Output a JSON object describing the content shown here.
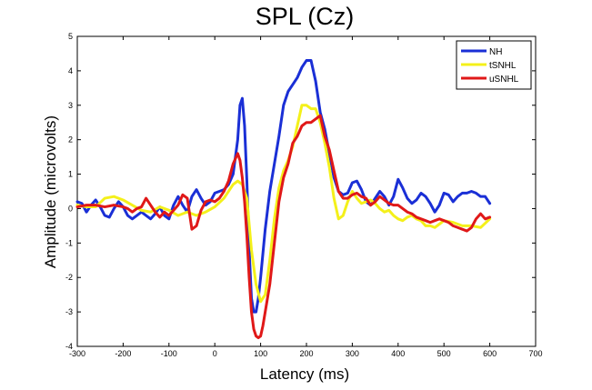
{
  "chart_data": {
    "type": "line",
    "title": "SPL (Cz)",
    "xlabel": "Latency (ms)",
    "ylabel": "Amplitude (microvolts)",
    "xlim": [
      -300,
      700
    ],
    "ylim": [
      -4,
      5
    ],
    "xticks": [
      -300,
      -200,
      -100,
      0,
      100,
      200,
      300,
      400,
      500,
      600,
      700
    ],
    "yticks": [
      -4,
      -3,
      -2,
      -1,
      0,
      1,
      2,
      3,
      4,
      5
    ],
    "grid": false,
    "legend_position": "top-right",
    "series": [
      {
        "name": "NH",
        "color": "#1a2fd6",
        "x": [
          -300,
          -290,
          -280,
          -270,
          -260,
          -250,
          -240,
          -230,
          -220,
          -210,
          -200,
          -190,
          -180,
          -170,
          -160,
          -150,
          -140,
          -130,
          -120,
          -110,
          -100,
          -90,
          -80,
          -70,
          -60,
          -50,
          -40,
          -30,
          -20,
          -10,
          0,
          10,
          20,
          30,
          40,
          50,
          55,
          60,
          65,
          70,
          75,
          80,
          85,
          90,
          95,
          100,
          110,
          120,
          130,
          140,
          150,
          160,
          170,
          180,
          190,
          200,
          210,
          220,
          230,
          240,
          250,
          260,
          270,
          280,
          290,
          300,
          310,
          320,
          330,
          340,
          350,
          360,
          370,
          380,
          390,
          400,
          410,
          420,
          430,
          440,
          450,
          460,
          470,
          480,
          490,
          500,
          510,
          520,
          530,
          540,
          550,
          560,
          570,
          580,
          590,
          600
        ],
        "y": [
          0.2,
          0.15,
          -0.1,
          0.1,
          0.25,
          0.05,
          -0.2,
          -0.25,
          0.0,
          0.2,
          0.05,
          -0.2,
          -0.3,
          -0.2,
          -0.1,
          -0.2,
          -0.3,
          -0.15,
          0.05,
          -0.2,
          -0.3,
          0.1,
          0.35,
          0.1,
          -0.1,
          0.35,
          0.55,
          0.3,
          0.1,
          0.2,
          0.45,
          0.5,
          0.55,
          0.7,
          1.0,
          2.0,
          3.0,
          3.2,
          2.4,
          0.8,
          -1.2,
          -2.6,
          -3.0,
          -3.0,
          -2.6,
          -2.0,
          -0.6,
          0.5,
          1.3,
          2.1,
          3.0,
          3.4,
          3.6,
          3.8,
          4.1,
          4.3,
          4.3,
          3.7,
          2.8,
          2.3,
          1.6,
          0.9,
          0.5,
          0.4,
          0.45,
          0.75,
          0.8,
          0.55,
          0.2,
          0.1,
          0.3,
          0.5,
          0.35,
          0.1,
          0.35,
          0.85,
          0.6,
          0.3,
          0.15,
          0.25,
          0.45,
          0.35,
          0.15,
          -0.1,
          0.1,
          0.45,
          0.4,
          0.2,
          0.35,
          0.45,
          0.45,
          0.5,
          0.45,
          0.35,
          0.35,
          0.15
        ]
      },
      {
        "name": "tSNHL",
        "color": "#f4f01a",
        "x": [
          -300,
          -280,
          -260,
          -240,
          -220,
          -200,
          -180,
          -160,
          -140,
          -120,
          -100,
          -80,
          -60,
          -40,
          -20,
          0,
          20,
          40,
          50,
          60,
          70,
          80,
          90,
          100,
          110,
          120,
          130,
          140,
          150,
          160,
          170,
          180,
          190,
          200,
          210,
          220,
          230,
          240,
          250,
          260,
          270,
          280,
          290,
          300,
          310,
          320,
          330,
          340,
          350,
          360,
          370,
          380,
          390,
          400,
          410,
          420,
          430,
          440,
          450,
          460,
          470,
          480,
          490,
          500,
          520,
          540,
          560,
          580,
          600
        ],
        "y": [
          0.1,
          0.05,
          0.05,
          0.3,
          0.35,
          0.25,
          0.1,
          -0.05,
          -0.1,
          0.05,
          -0.05,
          -0.2,
          -0.1,
          -0.2,
          -0.1,
          0.05,
          0.3,
          0.7,
          0.8,
          0.7,
          0.3,
          -1.2,
          -2.2,
          -2.7,
          -2.5,
          -1.5,
          -0.3,
          0.6,
          1.1,
          1.4,
          1.8,
          2.4,
          3.0,
          3.0,
          2.9,
          2.9,
          2.5,
          1.9,
          1.2,
          0.3,
          -0.3,
          -0.2,
          0.2,
          0.5,
          0.3,
          0.15,
          0.2,
          0.25,
          0.15,
          0.0,
          -0.1,
          -0.05,
          -0.2,
          -0.3,
          -0.35,
          -0.25,
          -0.2,
          -0.3,
          -0.35,
          -0.5,
          -0.5,
          -0.55,
          -0.45,
          -0.35,
          -0.4,
          -0.5,
          -0.5,
          -0.55,
          -0.3
        ]
      },
      {
        "name": "uSNHL",
        "color": "#e01818",
        "x": [
          -300,
          -280,
          -260,
          -240,
          -220,
          -200,
          -190,
          -180,
          -170,
          -160,
          -150,
          -140,
          -130,
          -120,
          -110,
          -100,
          -90,
          -80,
          -70,
          -60,
          -50,
          -40,
          -30,
          -20,
          -10,
          0,
          10,
          20,
          30,
          40,
          50,
          55,
          60,
          65,
          70,
          75,
          80,
          85,
          90,
          95,
          100,
          105,
          110,
          120,
          130,
          140,
          150,
          160,
          170,
          180,
          190,
          200,
          210,
          220,
          230,
          240,
          250,
          260,
          270,
          280,
          290,
          300,
          310,
          320,
          330,
          340,
          350,
          360,
          370,
          380,
          390,
          400,
          410,
          420,
          430,
          440,
          450,
          460,
          470,
          480,
          490,
          500,
          510,
          520,
          530,
          540,
          550,
          560,
          570,
          580,
          590,
          600
        ],
        "y": [
          0.05,
          0.1,
          0.1,
          0.05,
          0.1,
          0.05,
          0.0,
          -0.1,
          0.0,
          0.05,
          0.3,
          0.1,
          -0.1,
          -0.25,
          -0.1,
          -0.2,
          -0.05,
          0.1,
          0.4,
          0.3,
          -0.6,
          -0.5,
          -0.05,
          0.2,
          0.25,
          0.2,
          0.3,
          0.5,
          0.8,
          1.3,
          1.6,
          1.4,
          0.9,
          0.2,
          -0.8,
          -2.0,
          -3.0,
          -3.5,
          -3.7,
          -3.75,
          -3.7,
          -3.4,
          -3.0,
          -2.2,
          -1.0,
          0.2,
          0.9,
          1.3,
          1.9,
          2.1,
          2.4,
          2.5,
          2.5,
          2.6,
          2.7,
          2.1,
          1.7,
          1.1,
          0.5,
          0.3,
          0.3,
          0.4,
          0.45,
          0.35,
          0.3,
          0.1,
          0.2,
          0.35,
          0.25,
          0.15,
          0.1,
          0.1,
          0.0,
          -0.1,
          -0.15,
          -0.25,
          -0.3,
          -0.35,
          -0.4,
          -0.35,
          -0.3,
          -0.35,
          -0.4,
          -0.5,
          -0.55,
          -0.6,
          -0.65,
          -0.55,
          -0.3,
          -0.15,
          -0.3,
          -0.25
        ]
      }
    ]
  }
}
